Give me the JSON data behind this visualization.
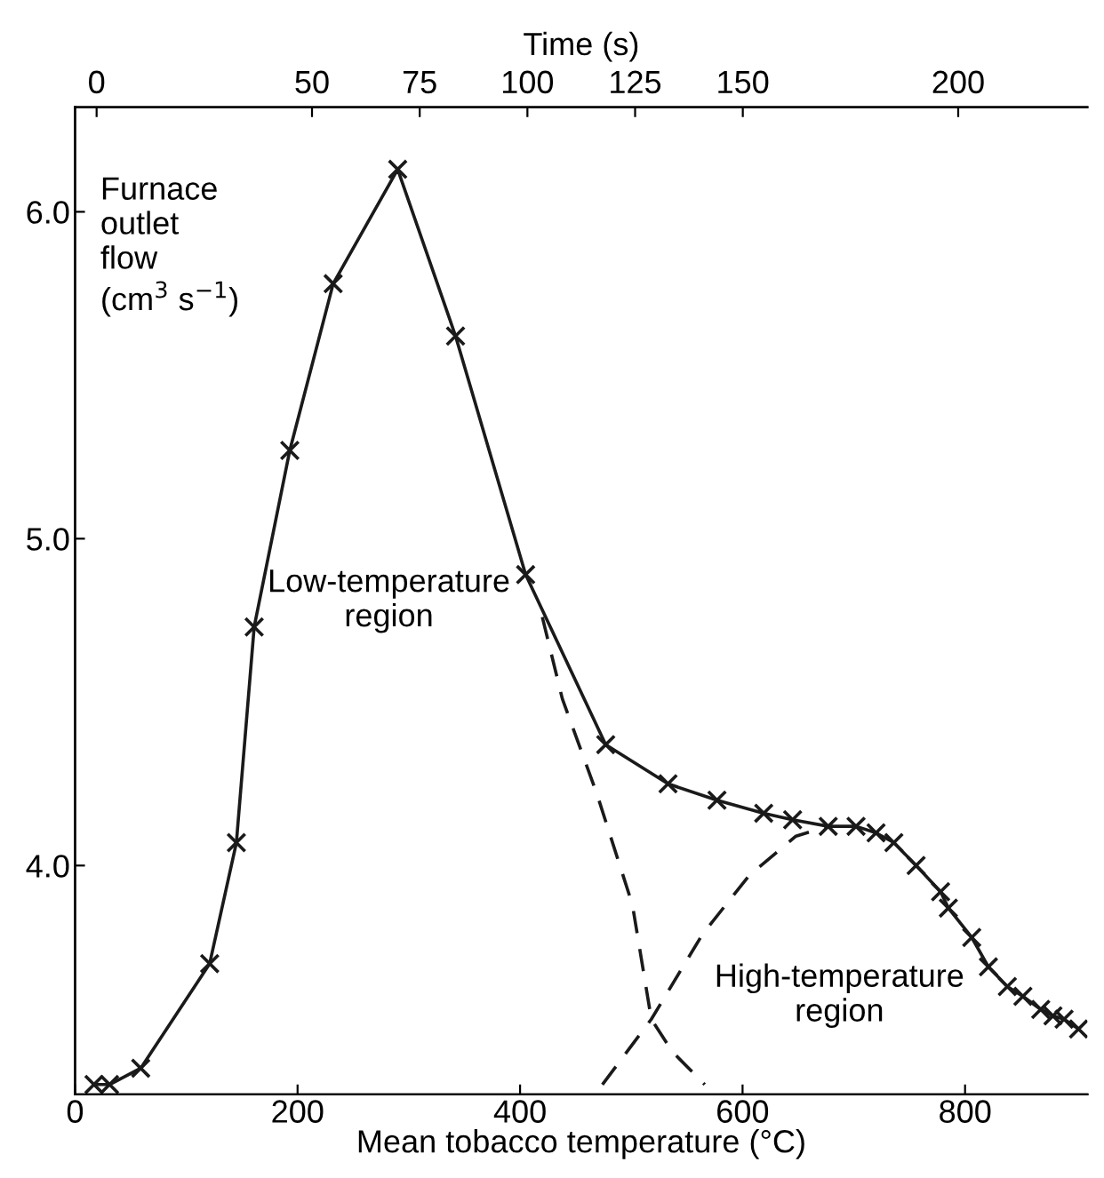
{
  "chart_data": {
    "type": "line",
    "xlabel": "Mean tobacco temperature (°C)",
    "x2label": "Time (s)",
    "ylabel": "Furnace\noutlet\nflow\n(cm$^{3}$ s$^{−1}$)",
    "xlim": [
      0,
      910
    ],
    "xticks": [
      0,
      200,
      400,
      600,
      800
    ],
    "x2lim": [
      -5,
      230
    ],
    "x2ticks": [
      0,
      50,
      75,
      100,
      125,
      150,
      200
    ],
    "ylim": [
      3.3,
      6.32
    ],
    "yticks": [
      {
        "value": 4,
        "label": "4.0"
      },
      {
        "value": 5,
        "label": "5.0"
      },
      {
        "value": 6,
        "label": "6.0"
      }
    ],
    "series": [
      {
        "color": "#1a1a1a",
        "marker": "cross",
        "line_style": "solid",
        "x": [
          17,
          31,
          59,
          121,
          145,
          161,
          193,
          232,
          290,
          342,
          405,
          477,
          533,
          577,
          619,
          645,
          677,
          702,
          720,
          736,
          756,
          778,
          785,
          806,
          821,
          838,
          852,
          868,
          879,
          889,
          902
        ],
        "values": [
          3.33,
          3.33,
          3.38,
          3.7,
          4.07,
          4.73,
          5.27,
          5.78,
          6.13,
          5.62,
          4.89,
          4.37,
          4.25,
          4.2,
          4.16,
          4.14,
          4.12,
          4.12,
          4.1,
          4.07,
          4.0,
          3.92,
          3.87,
          3.78,
          3.69,
          3.63,
          3.6,
          3.56,
          3.54,
          3.53,
          3.5
        ]
      },
      {
        "color": "#1a1a1a",
        "marker": "none",
        "line_style": "dashed",
        "x": [
          420,
          438,
          469,
          501,
          518,
          537,
          566
        ],
        "values": [
          4.76,
          4.51,
          4.22,
          3.88,
          3.53,
          3.43,
          3.33
        ]
      },
      {
        "color": "#1a1a1a",
        "marker": "none",
        "line_style": "dashed",
        "x": [
          474,
          518,
          564,
          606,
          648,
          677
        ],
        "values": [
          3.33,
          3.53,
          3.79,
          3.97,
          4.09,
          4.12
        ]
      }
    ],
    "annotations": [
      "Low-temperature\nregion",
      "High-temperature\nregion"
    ]
  }
}
